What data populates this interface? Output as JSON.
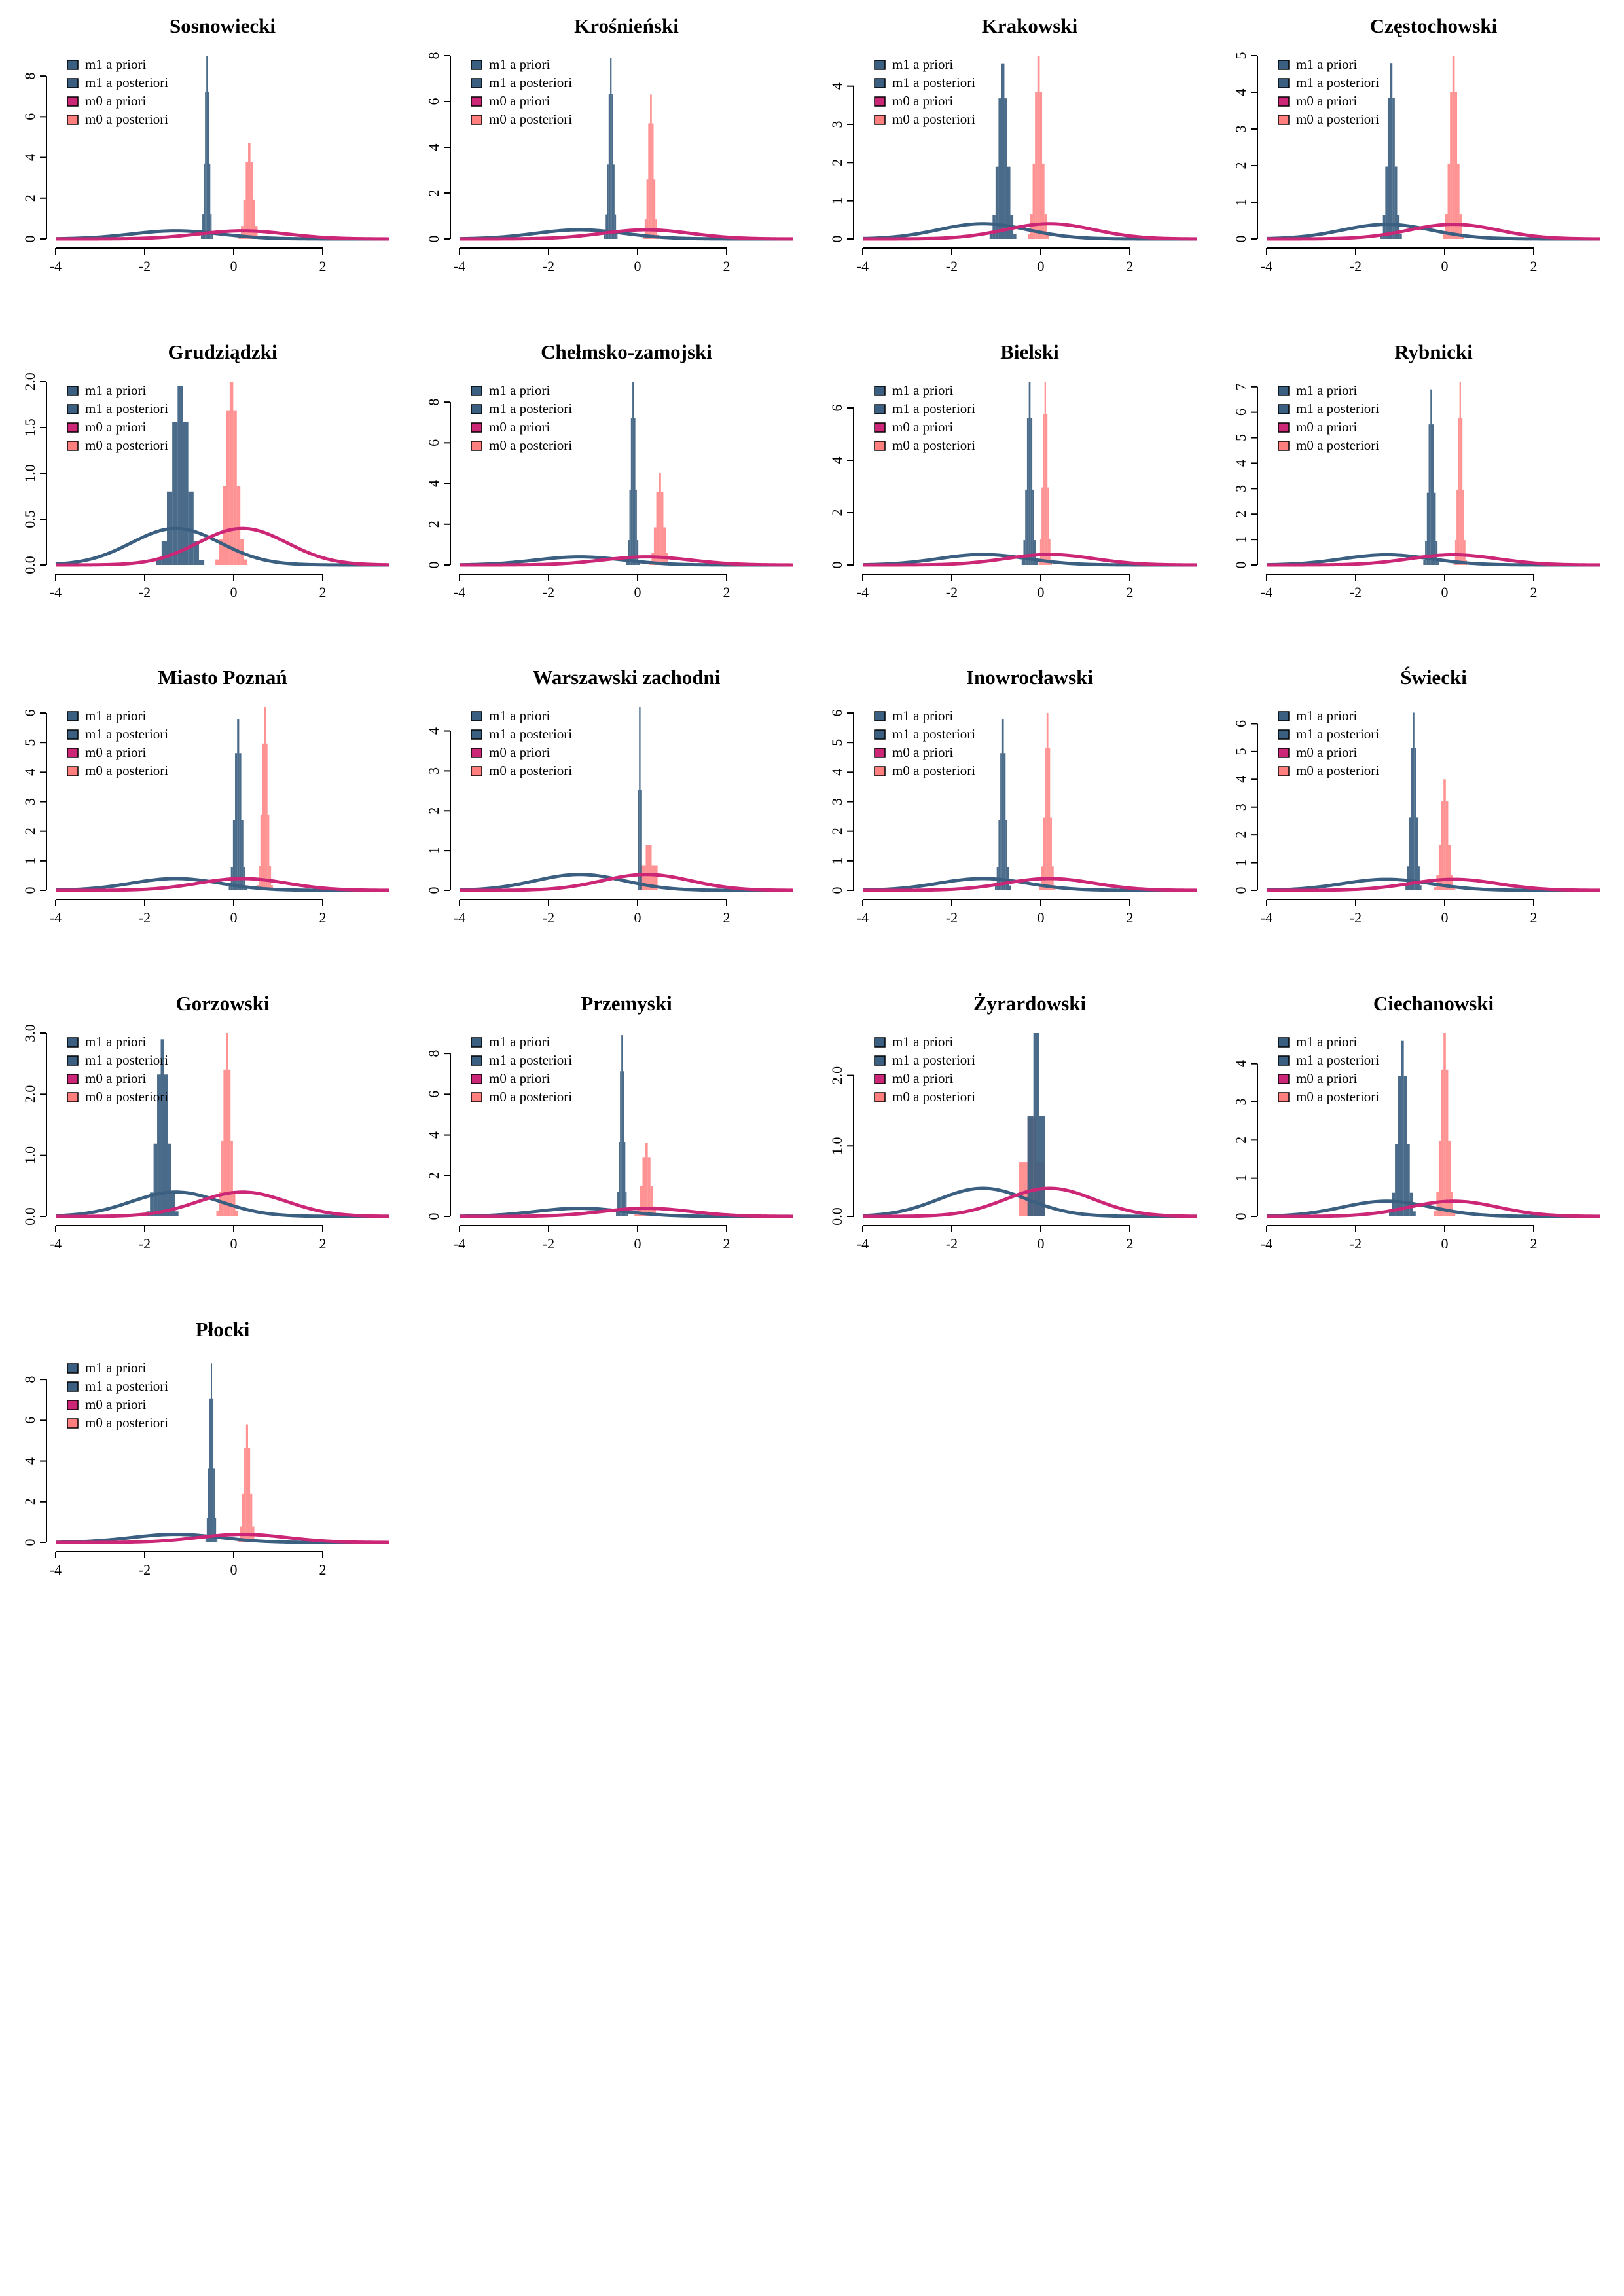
{
  "colors": {
    "m1": "#3b5f80",
    "m1_prior": "#3b5f80",
    "m0_prior": "#cc2676",
    "m0_post": "#ff7f7f"
  },
  "legend_labels": [
    "m1 a priori",
    "m1 a posteriori",
    "m0 a priori",
    "m0 a posteriori"
  ],
  "chart_data": [
    {
      "type": "histogram",
      "title": "Sosnowiecki",
      "xlim": [
        -4,
        3.5
      ],
      "xticks": [
        -4,
        -2,
        0,
        2
      ],
      "ylim": [
        0,
        9
      ],
      "yticks": [
        0,
        2,
        4,
        6,
        8
      ],
      "yticklabels": [
        "0",
        "2",
        "4",
        "6",
        "8"
      ],
      "m1_post": {
        "mean": -0.6,
        "sd": 0.045,
        "peak": 9.0
      },
      "m0_post": {
        "mean": 0.35,
        "sd": 0.08,
        "peak": 4.7
      },
      "m1_prior": {
        "mean": -1.3,
        "sd": 1.0
      },
      "m0_prior": {
        "mean": 0.2,
        "sd": 1.0
      }
    },
    {
      "type": "histogram",
      "title": "Krośnieński",
      "xlim": [
        -4,
        3.5
      ],
      "xticks": [
        -4,
        -2,
        0,
        2
      ],
      "ylim": [
        0,
        8
      ],
      "yticks": [
        0,
        2,
        4,
        6,
        8
      ],
      "yticklabels": [
        "0",
        "2",
        "4",
        "6",
        "8"
      ],
      "m1_post": {
        "mean": -0.6,
        "sd": 0.05,
        "peak": 7.9
      },
      "m0_post": {
        "mean": 0.3,
        "sd": 0.06,
        "peak": 6.3
      },
      "m1_prior": {
        "mean": -1.3,
        "sd": 1.0
      },
      "m0_prior": {
        "mean": 0.2,
        "sd": 1.0
      }
    },
    {
      "type": "histogram",
      "title": "Krakowski",
      "xlim": [
        -4,
        3.5
      ],
      "xticks": [
        -4,
        -2,
        0,
        2
      ],
      "ylim": [
        0,
        4.8
      ],
      "yticks": [
        0,
        1,
        2,
        3,
        4
      ],
      "yticklabels": [
        "0",
        "1",
        "2",
        "3",
        "4"
      ],
      "m1_post": {
        "mean": -0.85,
        "sd": 0.1,
        "peak": 4.6
      },
      "m0_post": {
        "mean": -0.05,
        "sd": 0.08,
        "peak": 4.8
      },
      "m1_prior": {
        "mean": -1.3,
        "sd": 1.0
      },
      "m0_prior": {
        "mean": 0.2,
        "sd": 1.0
      }
    },
    {
      "type": "histogram",
      "title": "Częstochowski",
      "xlim": [
        -4,
        3.5
      ],
      "xticks": [
        -4,
        -2,
        0,
        2
      ],
      "ylim": [
        0,
        5
      ],
      "yticks": [
        0,
        1,
        2,
        3,
        4,
        5
      ],
      "yticklabels": [
        "0",
        "1",
        "2",
        "3",
        "4",
        "5"
      ],
      "m1_post": {
        "mean": -1.2,
        "sd": 0.08,
        "peak": 4.8
      },
      "m0_post": {
        "mean": 0.2,
        "sd": 0.08,
        "peak": 5.0
      },
      "m1_prior": {
        "mean": -1.3,
        "sd": 1.0
      },
      "m0_prior": {
        "mean": 0.2,
        "sd": 1.0
      }
    },
    {
      "type": "histogram",
      "title": "Grudziądzki",
      "xlim": [
        -4,
        3.5
      ],
      "xticks": [
        -4,
        -2,
        0,
        2
      ],
      "ylim": [
        0,
        2.0
      ],
      "yticks": [
        0,
        0.5,
        1.0,
        1.5,
        2.0
      ],
      "yticklabels": [
        "0.0",
        "0.5",
        "1.0",
        "1.5",
        "2.0"
      ],
      "m1_post": {
        "mean": -1.2,
        "sd": 0.18,
        "peak": 1.95
      },
      "m0_post": {
        "mean": -0.05,
        "sd": 0.12,
        "peak": 2.1
      },
      "m1_prior": {
        "mean": -1.3,
        "sd": 1.0
      },
      "m0_prior": {
        "mean": 0.2,
        "sd": 1.0
      }
    },
    {
      "type": "histogram",
      "title": "Chełmsko-zamojski",
      "xlim": [
        -4,
        3.5
      ],
      "xticks": [
        -4,
        -2,
        0,
        2
      ],
      "ylim": [
        0,
        9
      ],
      "yticks": [
        0,
        2,
        4,
        6,
        8
      ],
      "yticklabels": [
        "0",
        "2",
        "4",
        "6",
        "8"
      ],
      "m1_post": {
        "mean": -0.1,
        "sd": 0.05,
        "peak": 9.0
      },
      "m0_post": {
        "mean": 0.5,
        "sd": 0.08,
        "peak": 4.5
      },
      "m1_prior": {
        "mean": -1.3,
        "sd": 1.0
      },
      "m0_prior": {
        "mean": 0.2,
        "sd": 1.0
      }
    },
    {
      "type": "histogram",
      "title": "Bielski",
      "xlim": [
        -4,
        3.5
      ],
      "xticks": [
        -4,
        -2,
        0,
        2
      ],
      "ylim": [
        0,
        7
      ],
      "yticks": [
        0,
        2,
        4,
        6
      ],
      "yticklabels": [
        "0",
        "2",
        "4",
        "6"
      ],
      "m1_post": {
        "mean": -0.25,
        "sd": 0.06,
        "peak": 7.0
      },
      "m0_post": {
        "mean": 0.1,
        "sd": 0.05,
        "peak": 7.2
      },
      "m1_prior": {
        "mean": -1.3,
        "sd": 1.0
      },
      "m0_prior": {
        "mean": 0.2,
        "sd": 1.0
      }
    },
    {
      "type": "histogram",
      "title": "Rybnicki",
      "xlim": [
        -4,
        3.5
      ],
      "xticks": [
        -4,
        -2,
        0,
        2
      ],
      "ylim": [
        0,
        7.2
      ],
      "yticks": [
        0,
        1,
        2,
        3,
        4,
        5,
        6,
        7
      ],
      "yticklabels": [
        "0",
        "1",
        "2",
        "3",
        "4",
        "5",
        "6",
        "7"
      ],
      "m1_post": {
        "mean": -0.3,
        "sd": 0.06,
        "peak": 6.9
      },
      "m0_post": {
        "mean": 0.35,
        "sd": 0.05,
        "peak": 7.2
      },
      "m1_prior": {
        "mean": -1.3,
        "sd": 1.0
      },
      "m0_prior": {
        "mean": 0.2,
        "sd": 1.0
      }
    },
    {
      "type": "histogram",
      "title": "Miasto Poznań",
      "xlim": [
        -4,
        3.5
      ],
      "xticks": [
        -4,
        -2,
        0,
        2
      ],
      "ylim": [
        0,
        6.2
      ],
      "yticks": [
        0,
        1,
        2,
        3,
        4,
        5,
        6
      ],
      "yticklabels": [
        "0",
        "1",
        "2",
        "3",
        "4",
        "5",
        "6"
      ],
      "m1_post": {
        "mean": 0.1,
        "sd": 0.07,
        "peak": 5.8
      },
      "m0_post": {
        "mean": 0.7,
        "sd": 0.06,
        "peak": 6.2
      },
      "m1_prior": {
        "mean": -1.3,
        "sd": 1.0
      },
      "m0_prior": {
        "mean": 0.2,
        "sd": 1.0
      }
    },
    {
      "type": "histogram",
      "title": "Warszawski zachodni",
      "xlim": [
        -4,
        3.5
      ],
      "xticks": [
        -4,
        -2,
        0,
        2
      ],
      "ylim": [
        0,
        4.6
      ],
      "yticks": [
        0,
        1,
        2,
        3,
        4
      ],
      "yticklabels": [
        "0",
        "1",
        "2",
        "3",
        "4"
      ],
      "blocks": true,
      "m1_post": {
        "mean": 0.05,
        "sd": 0.05,
        "peak": 4.6
      },
      "m0_post": {
        "mean": 0.25,
        "sd": 0.2,
        "peak": 1.15
      },
      "m1_prior": {
        "mean": -1.3,
        "sd": 1.0
      },
      "m0_prior": {
        "mean": 0.2,
        "sd": 1.0
      }
    },
    {
      "type": "histogram",
      "title": "Inowrocławski",
      "xlim": [
        -4,
        3.5
      ],
      "xticks": [
        -4,
        -2,
        0,
        2
      ],
      "ylim": [
        0,
        6.2
      ],
      "yticks": [
        0,
        1,
        2,
        3,
        4,
        5,
        6
      ],
      "yticklabels": [
        "0",
        "1",
        "2",
        "3",
        "4",
        "5",
        "6"
      ],
      "m1_post": {
        "mean": -0.85,
        "sd": 0.06,
        "peak": 5.8
      },
      "m0_post": {
        "mean": 0.15,
        "sd": 0.06,
        "peak": 6.0
      },
      "m1_prior": {
        "mean": -1.3,
        "sd": 1.0
      },
      "m0_prior": {
        "mean": 0.2,
        "sd": 1.0
      }
    },
    {
      "type": "histogram",
      "title": "Świecki",
      "xlim": [
        -4,
        3.5
      ],
      "xticks": [
        -4,
        -2,
        0,
        2
      ],
      "ylim": [
        0,
        6.6
      ],
      "yticks": [
        0,
        1,
        2,
        3,
        4,
        5,
        6
      ],
      "yticklabels": [
        "0",
        "1",
        "2",
        "3",
        "4",
        "5",
        "6"
      ],
      "m1_post": {
        "mean": -0.7,
        "sd": 0.06,
        "peak": 6.4
      },
      "m0_post": {
        "mean": 0.0,
        "sd": 0.08,
        "peak": 4.0
      },
      "m1_prior": {
        "mean": -1.3,
        "sd": 1.0
      },
      "m0_prior": {
        "mean": 0.2,
        "sd": 1.0
      }
    },
    {
      "type": "histogram",
      "title": "Gorzowski",
      "xlim": [
        -4,
        3.5
      ],
      "xticks": [
        -4,
        -2,
        0,
        2
      ],
      "ylim": [
        0,
        3.0
      ],
      "yticks": [
        0,
        1.0,
        2.0,
        3.0
      ],
      "yticklabels": [
        "0.0",
        "1.0",
        "2.0",
        "3.0"
      ],
      "m1_post": {
        "mean": -1.6,
        "sd": 0.12,
        "peak": 2.9
      },
      "m0_post": {
        "mean": -0.15,
        "sd": 0.08,
        "peak": 3.0
      },
      "m1_prior": {
        "mean": -1.3,
        "sd": 1.0
      },
      "m0_prior": {
        "mean": 0.2,
        "sd": 1.0
      }
    },
    {
      "type": "histogram",
      "title": "Przemyski",
      "xlim": [
        -4,
        3.5
      ],
      "xticks": [
        -4,
        -2,
        0,
        2
      ],
      "ylim": [
        0,
        9
      ],
      "yticks": [
        0,
        2,
        4,
        6,
        8
      ],
      "yticklabels": [
        "0",
        "2",
        "4",
        "6",
        "8"
      ],
      "m1_post": {
        "mean": -0.35,
        "sd": 0.045,
        "peak": 8.9
      },
      "m0_post": {
        "mean": 0.2,
        "sd": 0.09,
        "peak": 3.6
      },
      "m1_prior": {
        "mean": -1.3,
        "sd": 1.0
      },
      "m0_prior": {
        "mean": 0.2,
        "sd": 1.0
      }
    },
    {
      "type": "histogram",
      "title": "Żyrardowski",
      "xlim": [
        -4,
        3.5
      ],
      "xticks": [
        -4,
        -2,
        0,
        2
      ],
      "ylim": [
        0,
        2.6
      ],
      "yticks": [
        0,
        1.0,
        2.0
      ],
      "yticklabels": [
        "0.0",
        "1.0",
        "2.0"
      ],
      "blocks": true,
      "m1_post": {
        "mean": -0.1,
        "sd": 0.2,
        "peak": 2.6
      },
      "m0_post": {
        "mean": -0.2,
        "sd": 0.3,
        "peak": 1.4
      },
      "m1_prior": {
        "mean": -1.3,
        "sd": 1.0
      },
      "m0_prior": {
        "mean": 0.2,
        "sd": 1.0
      }
    },
    {
      "type": "histogram",
      "title": "Ciechanowski",
      "xlim": [
        -4,
        3.5
      ],
      "xticks": [
        -4,
        -2,
        0,
        2
      ],
      "ylim": [
        0,
        4.8
      ],
      "yticks": [
        0,
        1,
        2,
        3,
        4
      ],
      "yticklabels": [
        "0",
        "1",
        "2",
        "3",
        "4"
      ],
      "m1_post": {
        "mean": -0.95,
        "sd": 0.1,
        "peak": 4.6
      },
      "m0_post": {
        "mean": 0.0,
        "sd": 0.08,
        "peak": 4.8
      },
      "m1_prior": {
        "mean": -1.3,
        "sd": 1.0
      },
      "m0_prior": {
        "mean": 0.2,
        "sd": 1.0
      }
    },
    {
      "type": "histogram",
      "title": "Płocki",
      "xlim": [
        -4,
        3.5
      ],
      "xticks": [
        -4,
        -2,
        0,
        2
      ],
      "ylim": [
        0,
        9
      ],
      "yticks": [
        0,
        2,
        4,
        6,
        8
      ],
      "yticklabels": [
        "0",
        "2",
        "4",
        "6",
        "8"
      ],
      "m1_post": {
        "mean": -0.5,
        "sd": 0.045,
        "peak": 8.8
      },
      "m0_post": {
        "mean": 0.3,
        "sd": 0.07,
        "peak": 5.8
      },
      "m1_prior": {
        "mean": -1.3,
        "sd": 1.0
      },
      "m0_prior": {
        "mean": 0.2,
        "sd": 1.0
      }
    }
  ]
}
